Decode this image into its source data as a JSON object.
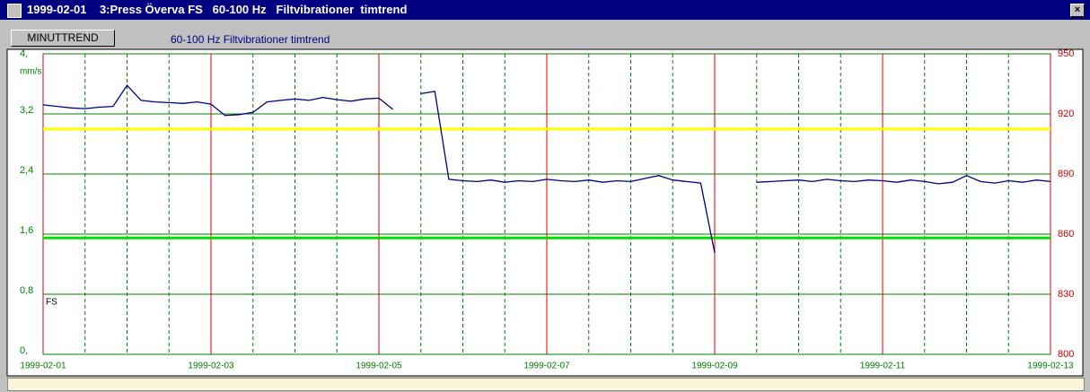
{
  "window": {
    "title": "1999-02-01    3:Press Överva FS   60-100 Hz   Filtvibrationer  timtrend"
  },
  "button": "MINUTTREND",
  "chart_data": {
    "type": "line",
    "title": "60-100 Hz Filtvibrationer timtrend",
    "y_unit": "mm/s",
    "annotation": "FS",
    "xlim": [
      "1999-02-01",
      "1999-02-13"
    ],
    "xticks": [
      "1999-02-01",
      "1999-02-03",
      "1999-02-05",
      "1999-02-07",
      "1999-02-09",
      "1999-02-11",
      "1999-02-13"
    ],
    "ylim": [
      0,
      4
    ],
    "yticks": [
      {
        "value": 0,
        "label": "0,"
      },
      {
        "value": 0.8,
        "label": "0,8"
      },
      {
        "value": 1.6,
        "label": "1,6"
      },
      {
        "value": 2.4,
        "label": "2,4"
      },
      {
        "value": 3.2,
        "label": "3,2"
      },
      {
        "value": 4,
        "label": "4,"
      }
    ],
    "y2lim": [
      800,
      950
    ],
    "y2ticks": [
      800,
      830,
      860,
      890,
      920,
      950
    ],
    "grid": true,
    "limits": [
      {
        "value": 3.0,
        "color": "#ffff00"
      },
      {
        "value": 1.55,
        "color": "#00e000"
      }
    ],
    "series": [
      {
        "color": "#000080",
        "values": [
          3.32,
          3.3,
          3.28,
          3.27,
          3.29,
          3.3,
          3.58,
          3.38,
          3.36,
          3.35,
          3.34,
          3.36,
          3.33,
          3.18,
          3.19,
          3.22,
          3.36,
          3.38,
          3.4,
          3.38,
          3.42,
          3.39,
          3.37,
          3.4,
          3.41,
          3.26,
          null,
          3.47,
          3.5,
          2.33,
          2.31,
          2.3,
          2.32,
          2.29,
          2.31,
          2.3,
          2.33,
          2.31,
          2.3,
          2.32,
          2.29,
          2.31,
          2.3,
          2.34,
          2.38,
          2.32,
          2.3,
          2.28,
          1.35,
          null,
          null,
          2.29,
          2.3,
          2.31,
          2.32,
          2.3,
          2.33,
          2.31,
          2.3,
          2.32,
          2.31,
          2.29,
          2.32,
          2.3,
          2.27,
          2.29,
          2.38,
          2.3,
          2.28,
          2.31,
          2.29,
          2.32,
          2.3
        ]
      }
    ]
  }
}
